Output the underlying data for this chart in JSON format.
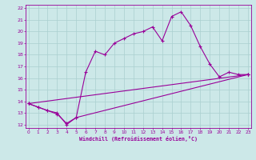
{
  "xlabel": "Windchill (Refroidissement éolien,°C)",
  "xlim": [
    0,
    23
  ],
  "ylim": [
    12,
    22
  ],
  "xticks": [
    0,
    1,
    2,
    3,
    4,
    5,
    6,
    7,
    8,
    9,
    10,
    11,
    12,
    13,
    14,
    15,
    16,
    17,
    18,
    19,
    20,
    21,
    22,
    23
  ],
  "yticks": [
    12,
    13,
    14,
    15,
    16,
    17,
    18,
    19,
    20,
    21,
    22
  ],
  "bg_color": "#cce8e8",
  "line_color": "#990099",
  "grid_color": "#aacfcf",
  "series1_x": [
    0,
    1,
    2,
    3,
    4,
    5,
    6,
    7,
    8,
    9,
    10,
    11,
    12,
    13,
    14,
    15,
    16,
    17,
    18,
    19,
    20,
    21,
    22,
    23
  ],
  "series1_y": [
    13.8,
    13.5,
    13.2,
    13.0,
    12.0,
    12.6,
    16.5,
    18.3,
    18.0,
    19.0,
    19.4,
    19.8,
    20.0,
    20.4,
    19.2,
    21.3,
    21.7,
    20.5,
    18.7,
    17.2,
    16.1,
    16.5,
    16.3,
    16.3
  ],
  "series2_x": [
    0,
    1,
    2,
    3,
    4,
    5,
    23
  ],
  "series2_y": [
    13.8,
    13.5,
    13.2,
    12.9,
    12.1,
    12.6,
    16.3
  ],
  "series3_x": [
    0,
    23
  ],
  "series3_y": [
    13.8,
    16.3
  ]
}
